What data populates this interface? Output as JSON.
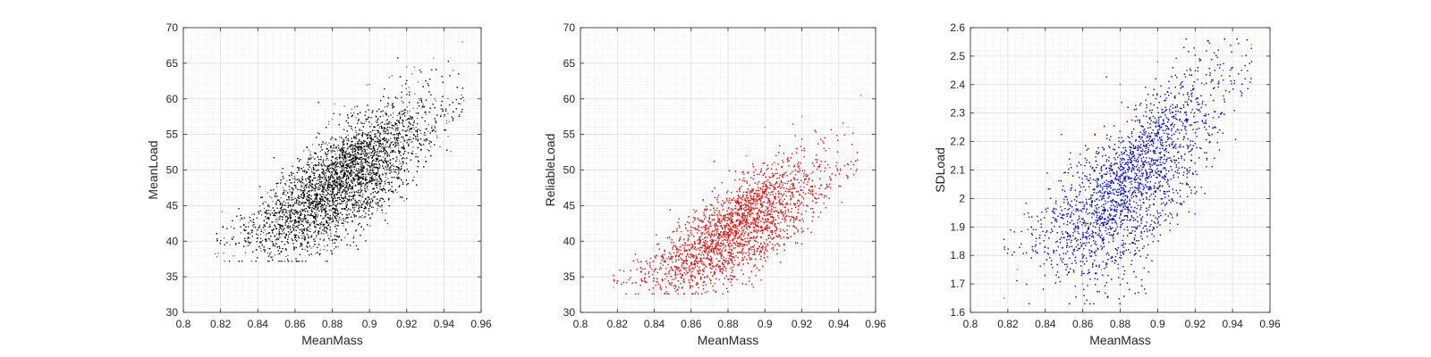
{
  "chart_data": [
    {
      "type": "scatter",
      "xlabel": "MeanMass",
      "ylabel": "MeanLoad",
      "xlim": [
        0.8,
        0.96
      ],
      "ylim": [
        30,
        70
      ],
      "xticks": [
        "0.8",
        "0.82",
        "0.84",
        "0.86",
        "0.88",
        "0.9",
        "0.92",
        "0.94",
        "0.96"
      ],
      "yticks": [
        "30",
        "35",
        "40",
        "45",
        "50",
        "55",
        "60",
        "65",
        "70"
      ],
      "grid": true,
      "minor_grid": true,
      "marker_color": "#000000",
      "series": [
        {
          "points_sample": [
            [
              0.818,
              37.8
            ],
            [
              0.825,
              39.5
            ],
            [
              0.835,
              41.0
            ],
            [
              0.845,
              42.5
            ],
            [
              0.855,
              45.0
            ],
            [
              0.865,
              47.5
            ],
            [
              0.875,
              49.0
            ],
            [
              0.885,
              50.2
            ],
            [
              0.895,
              51.0
            ],
            [
              0.905,
              52.0
            ],
            [
              0.915,
              53.5
            ],
            [
              0.925,
              56.0
            ],
            [
              0.935,
              60.0
            ],
            [
              0.945,
              64.0
            ],
            [
              0.95,
              68.0
            ],
            [
              0.9,
              62.0
            ],
            [
              0.92,
              64.5
            ],
            [
              0.89,
              58.0
            ],
            [
              0.88,
              45.0
            ],
            [
              0.86,
              40.5
            ]
          ]
        }
      ]
    },
    {
      "type": "scatter",
      "xlabel": "MeanMass",
      "ylabel": "ReliableLoad",
      "xlim": [
        0.8,
        0.96
      ],
      "ylim": [
        30,
        70
      ],
      "xticks": [
        "0.8",
        "0.82",
        "0.84",
        "0.86",
        "0.88",
        "0.9",
        "0.92",
        "0.94",
        "0.96"
      ],
      "yticks": [
        "30",
        "35",
        "40",
        "45",
        "50",
        "55",
        "60",
        "65",
        "70"
      ],
      "grid": true,
      "minor_grid": true,
      "marker_color": "#ff0000",
      "series": [
        {
          "points_sample": [
            [
              0.818,
              33.5
            ],
            [
              0.825,
              34.2
            ],
            [
              0.835,
              35.5
            ],
            [
              0.845,
              37.5
            ],
            [
              0.855,
              39.5
            ],
            [
              0.865,
              41.5
            ],
            [
              0.875,
              43.0
            ],
            [
              0.885,
              44.0
            ],
            [
              0.895,
              45.0
            ],
            [
              0.905,
              46.0
            ],
            [
              0.915,
              47.5
            ],
            [
              0.925,
              49.5
            ],
            [
              0.935,
              53.0
            ],
            [
              0.945,
              56.0
            ],
            [
              0.952,
              60.5
            ],
            [
              0.9,
              56.0
            ],
            [
              0.92,
              57.5
            ],
            [
              0.88,
              38.0
            ],
            [
              0.86,
              35.5
            ],
            [
              0.89,
              52.0
            ]
          ]
        }
      ]
    },
    {
      "type": "scatter",
      "xlabel": "MeanMass",
      "ylabel": "SDLoad",
      "xlim": [
        0.8,
        0.96
      ],
      "ylim": [
        1.6,
        2.6
      ],
      "xticks": [
        "0.8",
        "0.82",
        "0.84",
        "0.86",
        "0.88",
        "0.9",
        "0.92",
        "0.94",
        "0.96"
      ],
      "yticks": [
        "1.6",
        "1.7",
        "1.8",
        "1.9",
        "2",
        "2.1",
        "2.2",
        "2.3",
        "2.4",
        "2.5",
        "2.6"
      ],
      "grid": true,
      "minor_grid": true,
      "marker_color": "#0000ff",
      "series": [
        {
          "points_sample": [
            [
              0.818,
              1.65
            ],
            [
              0.825,
              1.75
            ],
            [
              0.835,
              1.85
            ],
            [
              0.845,
              1.93
            ],
            [
              0.855,
              1.96
            ],
            [
              0.865,
              1.97
            ],
            [
              0.875,
              1.99
            ],
            [
              0.885,
              2.02
            ],
            [
              0.895,
              2.12
            ],
            [
              0.905,
              2.2
            ],
            [
              0.915,
              2.3
            ],
            [
              0.925,
              2.4
            ],
            [
              0.935,
              2.45
            ],
            [
              0.945,
              2.5
            ],
            [
              0.95,
              2.54
            ],
            [
              0.88,
              2.4
            ],
            [
              0.9,
              2.48
            ],
            [
              0.87,
              1.75
            ],
            [
              0.86,
              1.7
            ],
            [
              0.93,
              2.25
            ]
          ]
        }
      ]
    }
  ]
}
